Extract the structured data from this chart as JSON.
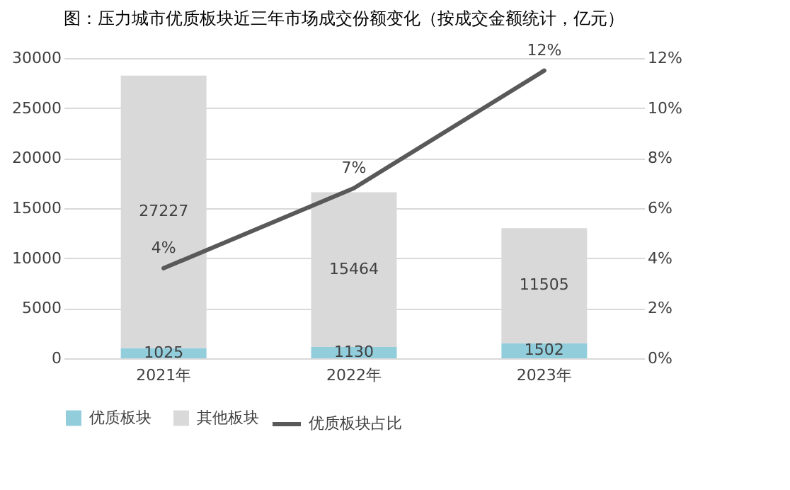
{
  "chart_data": {
    "type": "bar",
    "title": "图：压力城市优质板块近三年市场成交份额变化（按成交金额统计，亿元）",
    "categories": [
      "2021年",
      "2022年",
      "2023年"
    ],
    "stacked": true,
    "series": [
      {
        "name": "优质板块",
        "color": "#92cddc",
        "values": [
          1025,
          1130,
          1502
        ],
        "value_labels": [
          "1025",
          "1130",
          "1502"
        ]
      },
      {
        "name": "其他板块",
        "color": "#d9d9d9",
        "values": [
          27227,
          15464,
          11505
        ],
        "value_labels": [
          "27227",
          "15464",
          "11505"
        ]
      },
      {
        "name": "优质板块占比",
        "type": "line",
        "axis": "y2",
        "color": "#595959",
        "values": [
          3.6,
          6.8,
          11.5
        ],
        "value_labels": [
          "4%",
          "7%",
          "12%"
        ]
      }
    ],
    "ylim": [
      0,
      30000
    ],
    "yticks": [
      0,
      5000,
      10000,
      15000,
      20000,
      25000,
      30000
    ],
    "y2lim": [
      0,
      12
    ],
    "y2ticks": [
      {
        "value": 0,
        "label": "0%"
      },
      {
        "value": 2,
        "label": "2%"
      },
      {
        "value": 4,
        "label": "4%"
      },
      {
        "value": 6,
        "label": "6%"
      },
      {
        "value": 8,
        "label": "8%"
      },
      {
        "value": 10,
        "label": "10%"
      },
      {
        "value": 12,
        "label": "12%"
      }
    ],
    "grid": "y",
    "legend": "bottom",
    "marker": "none",
    "line_style": "solid"
  }
}
